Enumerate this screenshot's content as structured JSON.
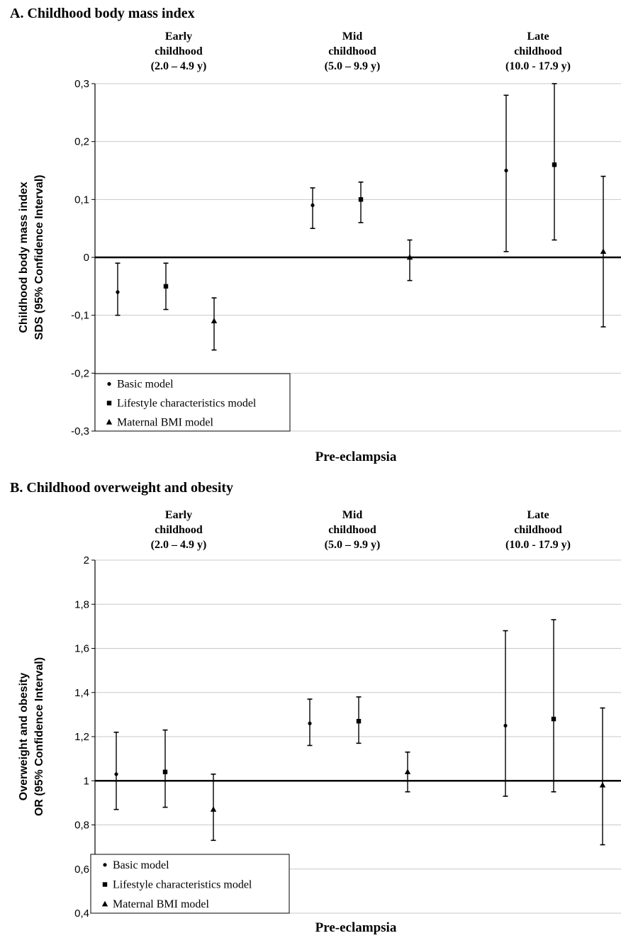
{
  "chart_data": [
    {
      "type": "scatter",
      "panel": "A",
      "title": "A.   Childhood body mass index",
      "ylabel": [
        "Childhood body mass index",
        "SDS (95% Confidence Interval)"
      ],
      "xlabel": "Pre-eclampsia",
      "ylim": [
        -0.3,
        0.3
      ],
      "reference_line": 0,
      "yticks": [
        -0.3,
        -0.2,
        -0.1,
        0,
        0.1,
        0.2,
        0.3
      ],
      "ytick_labels": [
        "-0,3",
        "-0,2",
        "-0,1",
        "0",
        "0,1",
        "0,2",
        "0,3"
      ],
      "grid": true,
      "legend_position": "bottom-left",
      "groups": [
        [
          "Early",
          "childhood",
          "(2.0 – 4.9 y)"
        ],
        [
          "Mid",
          "childhood",
          "(5.0 – 9.9 y)"
        ],
        [
          "Late",
          "childhood",
          "(10.0 - 17.9 y)"
        ]
      ],
      "series": [
        {
          "name": "Basic model",
          "marker": "circle",
          "estimates": [
            -0.06,
            0.09,
            0.15
          ],
          "lower": [
            -0.1,
            0.05,
            0.01
          ],
          "upper": [
            -0.01,
            0.12,
            0.28
          ]
        },
        {
          "name": "Lifestyle characteristics model",
          "marker": "square",
          "estimates": [
            -0.05,
            0.1,
            0.16
          ],
          "lower": [
            -0.09,
            0.06,
            0.03
          ],
          "upper": [
            -0.01,
            0.13,
            0.3
          ]
        },
        {
          "name": "Maternal BMI model",
          "marker": "triangle",
          "estimates": [
            -0.11,
            0.0,
            0.01
          ],
          "lower": [
            -0.16,
            -0.04,
            -0.12
          ],
          "upper": [
            -0.07,
            0.03,
            0.14
          ]
        }
      ]
    },
    {
      "type": "scatter",
      "panel": "B",
      "title": "B. Childhood overweight and obesity",
      "ylabel": [
        "Overweight and obesity",
        "OR (95% Confidence Interval)"
      ],
      "xlabel": "Pre-eclampsia",
      "ylim": [
        0.4,
        2.0
      ],
      "reference_line": 1,
      "yticks": [
        0.4,
        0.6,
        0.8,
        1.0,
        1.2,
        1.4,
        1.6,
        1.8,
        2.0
      ],
      "ytick_labels": [
        "0,4",
        "0,6",
        "0,8",
        "1",
        "1,2",
        "1,4",
        "1,6",
        "1,8",
        "2"
      ],
      "grid": true,
      "legend_position": "bottom-left",
      "groups": [
        [
          "Early",
          "childhood",
          "(2.0 – 4.9 y)"
        ],
        [
          "Mid",
          "childhood",
          "(5.0 – 9.9 y)"
        ],
        [
          "Late",
          "childhood",
          "(10.0 - 17.9 y)"
        ]
      ],
      "series": [
        {
          "name": "Basic model",
          "marker": "circle",
          "estimates": [
            1.03,
            1.26,
            1.25
          ],
          "lower": [
            0.87,
            1.16,
            0.93
          ],
          "upper": [
            1.22,
            1.37,
            1.68
          ]
        },
        {
          "name": "Lifestyle characteristics model",
          "marker": "square",
          "estimates": [
            1.04,
            1.27,
            1.28
          ],
          "lower": [
            0.88,
            1.17,
            0.95
          ],
          "upper": [
            1.23,
            1.38,
            1.73
          ]
        },
        {
          "name": "Maternal BMI model",
          "marker": "triangle",
          "estimates": [
            0.87,
            1.04,
            0.98
          ],
          "lower": [
            0.73,
            0.95,
            0.71
          ],
          "upper": [
            1.03,
            1.13,
            1.33
          ]
        }
      ]
    }
  ]
}
